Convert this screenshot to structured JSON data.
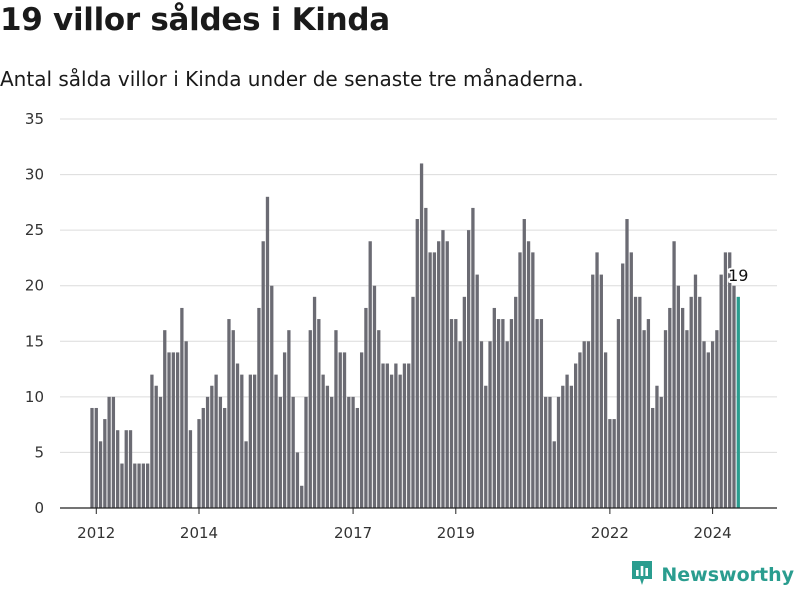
{
  "title": "19 villor såldes i Kinda",
  "subtitle": "Antal sålda villor i Kinda under de senaste tre månaderna.",
  "brand": {
    "name": "Newsworthy",
    "logo_icon": "bar-chart-logo-icon"
  },
  "colors": {
    "bar": "#6b6b73",
    "highlight": "#2a9d8f",
    "grid": "#dcdcdc",
    "axis": "#222222"
  },
  "chart_data": {
    "type": "bar",
    "start": "2011-12",
    "interval": "month",
    "ylim": [
      0,
      35
    ],
    "yticks": [
      0,
      5,
      10,
      15,
      20,
      25,
      30,
      35
    ],
    "xticks": [
      "2012",
      "2014",
      "2017",
      "2019",
      "2022",
      "2024"
    ],
    "grid": true,
    "values": [
      9,
      9,
      6,
      8,
      10,
      10,
      7,
      4,
      7,
      7,
      4,
      4,
      4,
      4,
      12,
      11,
      10,
      16,
      14,
      14,
      14,
      18,
      15,
      7,
      0,
      8,
      9,
      10,
      11,
      12,
      10,
      9,
      17,
      16,
      13,
      12,
      6,
      12,
      12,
      18,
      24,
      28,
      20,
      12,
      10,
      14,
      16,
      10,
      5,
      2,
      10,
      16,
      19,
      17,
      12,
      11,
      10,
      16,
      14,
      14,
      10,
      10,
      9,
      14,
      18,
      24,
      20,
      16,
      13,
      13,
      12,
      13,
      12,
      13,
      13,
      19,
      26,
      31,
      27,
      23,
      23,
      24,
      25,
      24,
      17,
      17,
      15,
      19,
      25,
      27,
      21,
      15,
      11,
      15,
      18,
      17,
      17,
      15,
      17,
      19,
      23,
      26,
      24,
      23,
      17,
      17,
      10,
      10,
      6,
      10,
      11,
      12,
      11,
      13,
      14,
      15,
      15,
      21,
      23,
      21,
      14,
      8,
      8,
      17,
      22,
      26,
      23,
      19,
      19,
      16,
      17,
      9,
      11,
      10,
      16,
      18,
      24,
      20,
      18,
      16,
      19,
      21,
      19,
      15,
      14,
      15,
      16,
      21,
      23,
      23,
      20,
      19
    ],
    "highlight_label": "19"
  }
}
